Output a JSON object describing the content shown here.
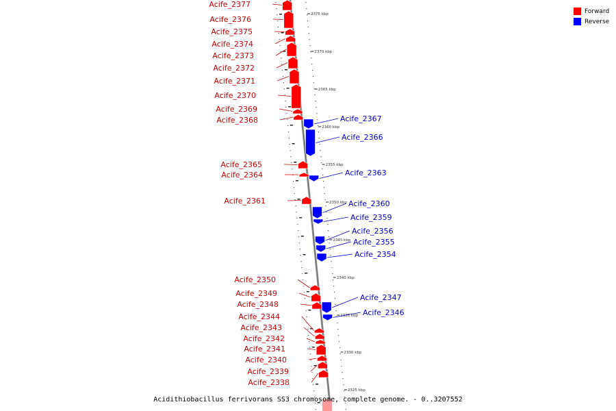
{
  "legend": {
    "items": [
      {
        "label": "Forward",
        "color": "#ff0000"
      },
      {
        "label": "Reverse",
        "color": "#0000ff"
      }
    ]
  },
  "caption": "Acidithiobacillus ferrivorans SS3 chromosome, complete genome. - 0..3207552",
  "colors": {
    "forward": "#ff0000",
    "reverse": "#0000ff",
    "forward_label": "#cc0000",
    "reverse_label": "#0000cc",
    "backbone": "#999999"
  },
  "ruler": {
    "labels": [
      "2375 kbp",
      "2370 kbp",
      "2365 kbp",
      "2360 kbp",
      "2355 kbp",
      "2350 kbp",
      "2345 kbp",
      "2340 kbp",
      "2335 kbp",
      "2330 kbp",
      "2325 kbp"
    ]
  },
  "forward_genes": [
    {
      "label": "Acife_2377"
    },
    {
      "label": "Acife_2376"
    },
    {
      "label": "Acife_2375"
    },
    {
      "label": "Acife_2374"
    },
    {
      "label": "Acife_2373"
    },
    {
      "label": "Acife_2372"
    },
    {
      "label": "Acife_2371"
    },
    {
      "label": "Acife_2370"
    },
    {
      "label": "Acife_2369"
    },
    {
      "label": "Acife_2368"
    },
    {
      "label": "Acife_2365"
    },
    {
      "label": "Acife_2364"
    },
    {
      "label": "Acife_2361"
    },
    {
      "label": "Acife_2350"
    },
    {
      "label": "Acife_2349"
    },
    {
      "label": "Acife_2348"
    },
    {
      "label": "Acife_2344"
    },
    {
      "label": "Acife_2343"
    },
    {
      "label": "Acife_2342"
    },
    {
      "label": "Acife_2341"
    },
    {
      "label": "Acife_2340"
    },
    {
      "label": "Acife_2339"
    },
    {
      "label": "Acife_2338"
    }
  ],
  "reverse_genes": [
    {
      "label": "Acife_2367"
    },
    {
      "label": "Acife_2366"
    },
    {
      "label": "Acife_2363"
    },
    {
      "label": "Acife_2360"
    },
    {
      "label": "Acife_2359"
    },
    {
      "label": "Acife_2356"
    },
    {
      "label": "Acife_2355"
    },
    {
      "label": "Acife_2354"
    },
    {
      "label": "Acife_2347"
    },
    {
      "label": "Acife_2346"
    }
  ]
}
